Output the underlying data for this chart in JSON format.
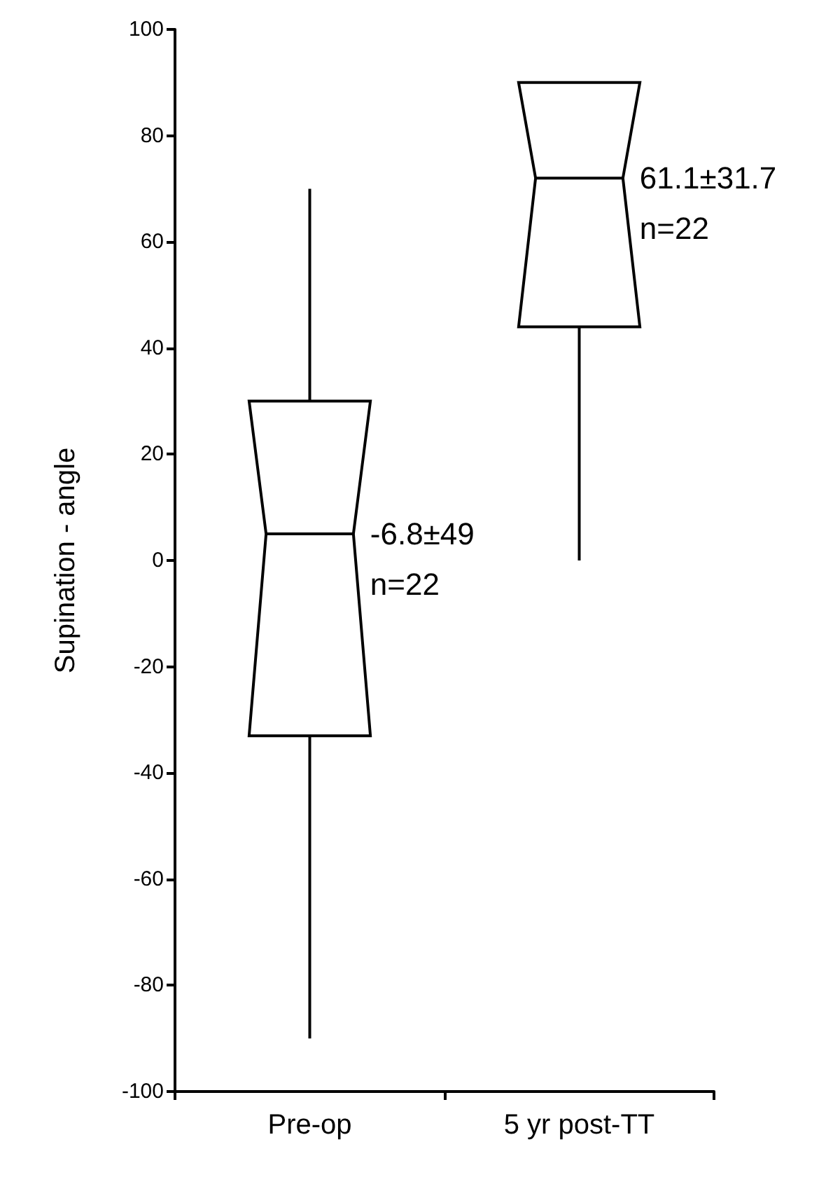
{
  "chart_data": {
    "type": "box",
    "ylabel": "Supination - angle",
    "categories": [
      "Pre-op",
      "5 yr post-TT"
    ],
    "boxes": [
      {
        "low": -90,
        "q1": -33,
        "median": 5,
        "q3": 30,
        "high": 70
      },
      {
        "low": 0,
        "q1": 44,
        "median": 72,
        "q3": 90,
        "high": 90
      }
    ],
    "color": "#000000",
    "ylim": [
      -100,
      100
    ],
    "yticks": [
      -100,
      -80,
      -60,
      -40,
      -20,
      0,
      20,
      40,
      60,
      80,
      100
    ],
    "grid": false,
    "annotations": [
      {
        "text": "-6.8±49\nn=22",
        "x": "Pre-op",
        "y": 5
      },
      {
        "text": "61.1±31.7\nn=22",
        "x": "5 yr post-TT",
        "y": 72
      }
    ]
  }
}
